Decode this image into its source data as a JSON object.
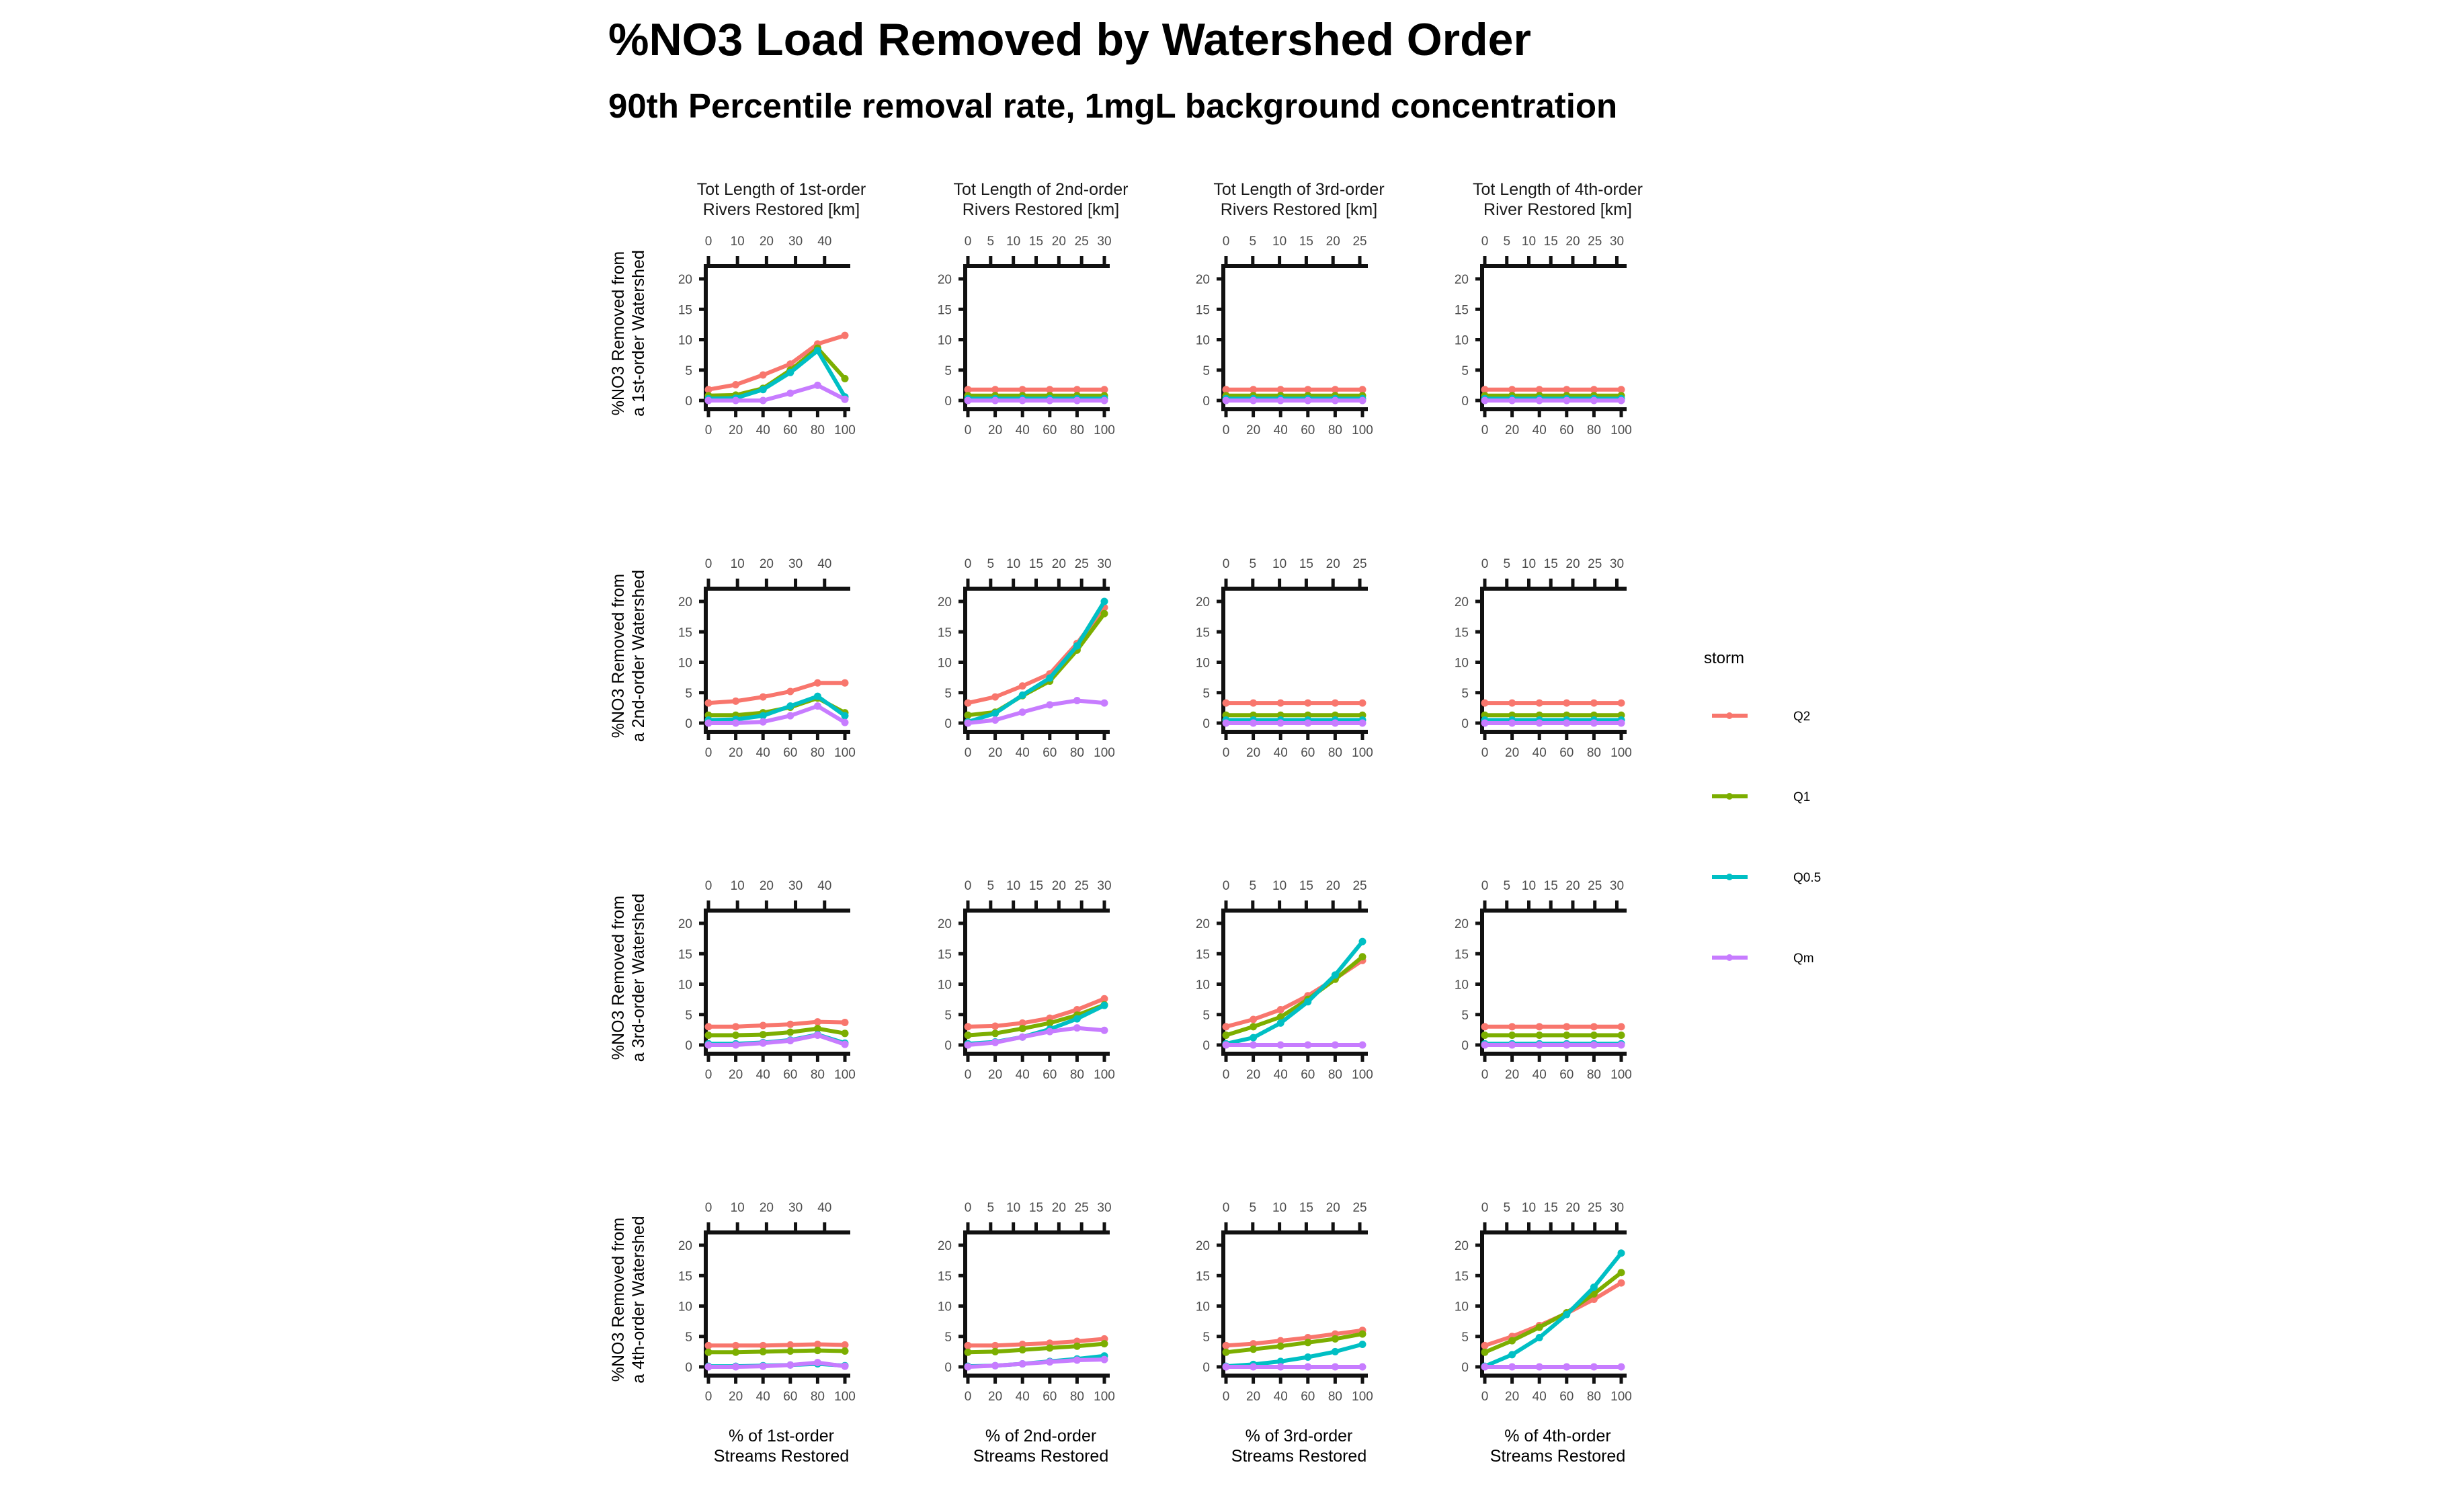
{
  "title": "%NO3 Load Removed by Watershed Order",
  "subtitle": "90th Percentile removal rate, 1mgL background concentration",
  "colors": {
    "Q2": "#F8766D",
    "Q1": "#7CAE00",
    "Q0.5": "#00BFC4",
    "Qm": "#C77CFF"
  },
  "legend": {
    "title": "storm",
    "position": "right",
    "items": [
      "Q2",
      "Q1",
      "Q0.5",
      "Qm"
    ]
  },
  "chart_data": {
    "type": "line",
    "layout": "facet-grid 4x4",
    "x": [
      0,
      20,
      40,
      60,
      80,
      100
    ],
    "xlim": [
      0,
      100
    ],
    "ylim": [
      0,
      20
    ],
    "x_ticks": [
      "0",
      "20",
      "40",
      "60",
      "80",
      "100"
    ],
    "y_ticks": [
      "0",
      "5",
      "10",
      "15",
      "20"
    ],
    "column_top_labels": [
      [
        "Tot Length of 1st-order",
        "Rivers Restored [km]"
      ],
      [
        "Tot Length of 2nd-order",
        "Rivers Restored [km]"
      ],
      [
        "Tot Length of 3rd-order",
        "Rivers Restored [km]"
      ],
      [
        "Tot Length of 4th-order",
        "River Restored [km]"
      ]
    ],
    "column_bottom_labels": [
      [
        "% of 1st-order",
        "Streams Restored"
      ],
      [
        "% of 2nd-order",
        "Streams Restored"
      ],
      [
        "% of 3rd-order",
        "Streams Restored"
      ],
      [
        "% of 4th-order",
        "Streams Restored"
      ]
    ],
    "row_labels": [
      [
        "%NO3 Removed from",
        "a 1st-order Watershed"
      ],
      [
        "%NO3 Removed from",
        "a 2nd-order Watershed"
      ],
      [
        "%NO3 Removed from",
        "a 3rd-order Watershed"
      ],
      [
        "%NO3 Removed from",
        "a 4th-order Watershed"
      ]
    ],
    "secondary_x": [
      {
        "max_km": 47,
        "ticks": [
          0,
          10,
          20,
          30,
          40
        ]
      },
      {
        "max_km": 30,
        "ticks": [
          0,
          5,
          10,
          15,
          20,
          25,
          30
        ]
      },
      {
        "max_km": 25.5,
        "ticks": [
          0,
          5,
          10,
          15,
          20,
          25
        ]
      },
      {
        "max_km": 31,
        "ticks": [
          0,
          5,
          10,
          15,
          20,
          25,
          30
        ]
      }
    ],
    "panels": [
      [
        {
          "series": [
            {
              "name": "Q2",
              "values": [
                1.8,
                2.6,
                4.2,
                6.0,
                9.3,
                10.7
              ]
            },
            {
              "name": "Q1",
              "values": [
                0.8,
                0.9,
                2.0,
                5.0,
                8.6,
                3.6
              ]
            },
            {
              "name": "Q0.5",
              "values": [
                0.3,
                0.4,
                1.8,
                4.6,
                8.2,
                0.6
              ]
            },
            {
              "name": "Qm",
              "values": [
                0.0,
                0.0,
                0.0,
                1.2,
                2.5,
                0.2
              ]
            }
          ]
        },
        {
          "series": [
            {
              "name": "Q2",
              "values": [
                1.8,
                1.8,
                1.8,
                1.8,
                1.8,
                1.8
              ]
            },
            {
              "name": "Q1",
              "values": [
                0.8,
                0.8,
                0.8,
                0.8,
                0.8,
                0.8
              ]
            },
            {
              "name": "Q0.5",
              "values": [
                0.3,
                0.3,
                0.3,
                0.3,
                0.3,
                0.3
              ]
            },
            {
              "name": "Qm",
              "values": [
                0.0,
                0.0,
                0.0,
                0.0,
                0.0,
                0.0
              ]
            }
          ]
        },
        {
          "series": [
            {
              "name": "Q2",
              "values": [
                1.8,
                1.8,
                1.8,
                1.8,
                1.8,
                1.8
              ]
            },
            {
              "name": "Q1",
              "values": [
                0.8,
                0.8,
                0.8,
                0.8,
                0.8,
                0.8
              ]
            },
            {
              "name": "Q0.5",
              "values": [
                0.3,
                0.3,
                0.3,
                0.3,
                0.3,
                0.3
              ]
            },
            {
              "name": "Qm",
              "values": [
                0.0,
                0.0,
                0.0,
                0.0,
                0.0,
                0.0
              ]
            }
          ]
        },
        {
          "series": [
            {
              "name": "Q2",
              "values": [
                1.8,
                1.8,
                1.8,
                1.8,
                1.8,
                1.8
              ]
            },
            {
              "name": "Q1",
              "values": [
                0.8,
                0.8,
                0.8,
                0.8,
                0.8,
                0.8
              ]
            },
            {
              "name": "Q0.5",
              "values": [
                0.3,
                0.3,
                0.3,
                0.3,
                0.3,
                0.3
              ]
            },
            {
              "name": "Qm",
              "values": [
                0.0,
                0.0,
                0.0,
                0.0,
                0.0,
                0.0
              ]
            }
          ]
        }
      ],
      [
        {
          "series": [
            {
              "name": "Q2",
              "values": [
                3.3,
                3.6,
                4.3,
                5.2,
                6.6,
                6.6
              ]
            },
            {
              "name": "Q1",
              "values": [
                1.3,
                1.3,
                1.7,
                2.6,
                4.1,
                1.7
              ]
            },
            {
              "name": "Q0.5",
              "values": [
                0.5,
                0.6,
                1.2,
                2.8,
                4.4,
                1.2
              ]
            },
            {
              "name": "Qm",
              "values": [
                0.0,
                0.0,
                0.2,
                1.2,
                2.8,
                0.1
              ]
            }
          ]
        },
        {
          "series": [
            {
              "name": "Q2",
              "values": [
                3.3,
                4.3,
                6.1,
                8.1,
                13.1,
                19.0
              ]
            },
            {
              "name": "Q1",
              "values": [
                1.3,
                1.8,
                4.5,
                6.9,
                12.0,
                18.0
              ]
            },
            {
              "name": "Q0.5",
              "values": [
                0.2,
                1.6,
                4.6,
                7.4,
                12.7,
                20.0
              ]
            },
            {
              "name": "Qm",
              "values": [
                0.0,
                0.5,
                1.8,
                3.0,
                3.7,
                3.3
              ]
            }
          ]
        },
        {
          "series": [
            {
              "name": "Q2",
              "values": [
                3.3,
                3.3,
                3.3,
                3.3,
                3.3,
                3.3
              ]
            },
            {
              "name": "Q1",
              "values": [
                1.3,
                1.3,
                1.3,
                1.3,
                1.3,
                1.3
              ]
            },
            {
              "name": "Q0.5",
              "values": [
                0.5,
                0.5,
                0.5,
                0.5,
                0.5,
                0.5
              ]
            },
            {
              "name": "Qm",
              "values": [
                0.0,
                0.0,
                0.0,
                0.0,
                0.0,
                0.0
              ]
            }
          ]
        },
        {
          "series": [
            {
              "name": "Q2",
              "values": [
                3.3,
                3.3,
                3.3,
                3.3,
                3.3,
                3.3
              ]
            },
            {
              "name": "Q1",
              "values": [
                1.3,
                1.3,
                1.3,
                1.3,
                1.3,
                1.3
              ]
            },
            {
              "name": "Q0.5",
              "values": [
                0.5,
                0.5,
                0.5,
                0.5,
                0.5,
                0.5
              ]
            },
            {
              "name": "Qm",
              "values": [
                0.0,
                0.0,
                0.0,
                0.0,
                0.0,
                0.0
              ]
            }
          ]
        }
      ],
      [
        {
          "series": [
            {
              "name": "Q2",
              "values": [
                3.0,
                3.0,
                3.2,
                3.4,
                3.8,
                3.7
              ]
            },
            {
              "name": "Q1",
              "values": [
                1.6,
                1.6,
                1.7,
                2.1,
                2.7,
                1.9
              ]
            },
            {
              "name": "Q0.5",
              "values": [
                0.2,
                0.2,
                0.4,
                0.8,
                1.7,
                0.3
              ]
            },
            {
              "name": "Qm",
              "values": [
                0.0,
                0.0,
                0.3,
                0.7,
                1.6,
                0.1
              ]
            }
          ]
        },
        {
          "series": [
            {
              "name": "Q2",
              "values": [
                3.0,
                3.1,
                3.6,
                4.4,
                5.8,
                7.6
              ]
            },
            {
              "name": "Q1",
              "values": [
                1.6,
                1.9,
                2.7,
                3.6,
                4.9,
                6.6
              ]
            },
            {
              "name": "Q0.5",
              "values": [
                0.2,
                0.5,
                1.3,
                2.6,
                4.3,
                6.5
              ]
            },
            {
              "name": "Qm",
              "values": [
                0.0,
                0.4,
                1.3,
                2.2,
                2.8,
                2.4
              ]
            }
          ]
        },
        {
          "series": [
            {
              "name": "Q2",
              "values": [
                3.0,
                4.2,
                5.8,
                8.1,
                10.9,
                13.9
              ]
            },
            {
              "name": "Q1",
              "values": [
                1.6,
                3.0,
                4.6,
                7.5,
                10.8,
                14.5
              ]
            },
            {
              "name": "Q0.5",
              "values": [
                0.2,
                1.2,
                3.6,
                7.1,
                11.5,
                17.0
              ]
            },
            {
              "name": "Qm",
              "values": [
                0.0,
                0.0,
                0.0,
                0.0,
                0.0,
                0.0
              ]
            }
          ]
        },
        {
          "series": [
            {
              "name": "Q2",
              "values": [
                3.0,
                3.0,
                3.0,
                3.0,
                3.0,
                3.0
              ]
            },
            {
              "name": "Q1",
              "values": [
                1.6,
                1.6,
                1.6,
                1.6,
                1.6,
                1.6
              ]
            },
            {
              "name": "Q0.5",
              "values": [
                0.2,
                0.2,
                0.2,
                0.2,
                0.2,
                0.2
              ]
            },
            {
              "name": "Qm",
              "values": [
                0.0,
                0.0,
                0.0,
                0.0,
                0.0,
                0.0
              ]
            }
          ]
        }
      ],
      [
        {
          "series": [
            {
              "name": "Q2",
              "values": [
                3.5,
                3.5,
                3.5,
                3.6,
                3.7,
                3.6
              ]
            },
            {
              "name": "Q1",
              "values": [
                2.4,
                2.4,
                2.5,
                2.6,
                2.7,
                2.6
              ]
            },
            {
              "name": "Q0.5",
              "values": [
                0.1,
                0.1,
                0.2,
                0.3,
                0.5,
                0.2
              ]
            },
            {
              "name": "Qm",
              "values": [
                0.0,
                0.0,
                0.1,
                0.3,
                0.7,
                0.1
              ]
            }
          ]
        },
        {
          "series": [
            {
              "name": "Q2",
              "values": [
                3.5,
                3.5,
                3.7,
                3.9,
                4.2,
                4.6
              ]
            },
            {
              "name": "Q1",
              "values": [
                2.4,
                2.5,
                2.8,
                3.1,
                3.4,
                3.8
              ]
            },
            {
              "name": "Q0.5",
              "values": [
                0.1,
                0.2,
                0.5,
                0.9,
                1.3,
                1.8
              ]
            },
            {
              "name": "Qm",
              "values": [
                0.0,
                0.2,
                0.5,
                0.8,
                1.1,
                1.2
              ]
            }
          ]
        },
        {
          "series": [
            {
              "name": "Q2",
              "values": [
                3.5,
                3.8,
                4.3,
                4.8,
                5.4,
                6.0
              ]
            },
            {
              "name": "Q1",
              "values": [
                2.4,
                2.9,
                3.4,
                4.0,
                4.6,
                5.4
              ]
            },
            {
              "name": "Q0.5",
              "values": [
                0.1,
                0.4,
                0.9,
                1.6,
                2.5,
                3.7
              ]
            },
            {
              "name": "Qm",
              "values": [
                0.0,
                0.0,
                0.0,
                0.0,
                0.0,
                0.0
              ]
            }
          ]
        },
        {
          "series": [
            {
              "name": "Q2",
              "values": [
                3.5,
                5.0,
                6.8,
                8.8,
                11.1,
                13.8
              ]
            },
            {
              "name": "Q1",
              "values": [
                2.4,
                4.3,
                6.5,
                8.9,
                12.0,
                15.5
              ]
            },
            {
              "name": "Q0.5",
              "values": [
                0.1,
                2.0,
                4.8,
                8.6,
                13.1,
                18.7
              ]
            },
            {
              "name": "Qm",
              "values": [
                0.0,
                0.0,
                0.0,
                0.0,
                0.0,
                0.0
              ]
            }
          ]
        }
      ]
    ]
  }
}
